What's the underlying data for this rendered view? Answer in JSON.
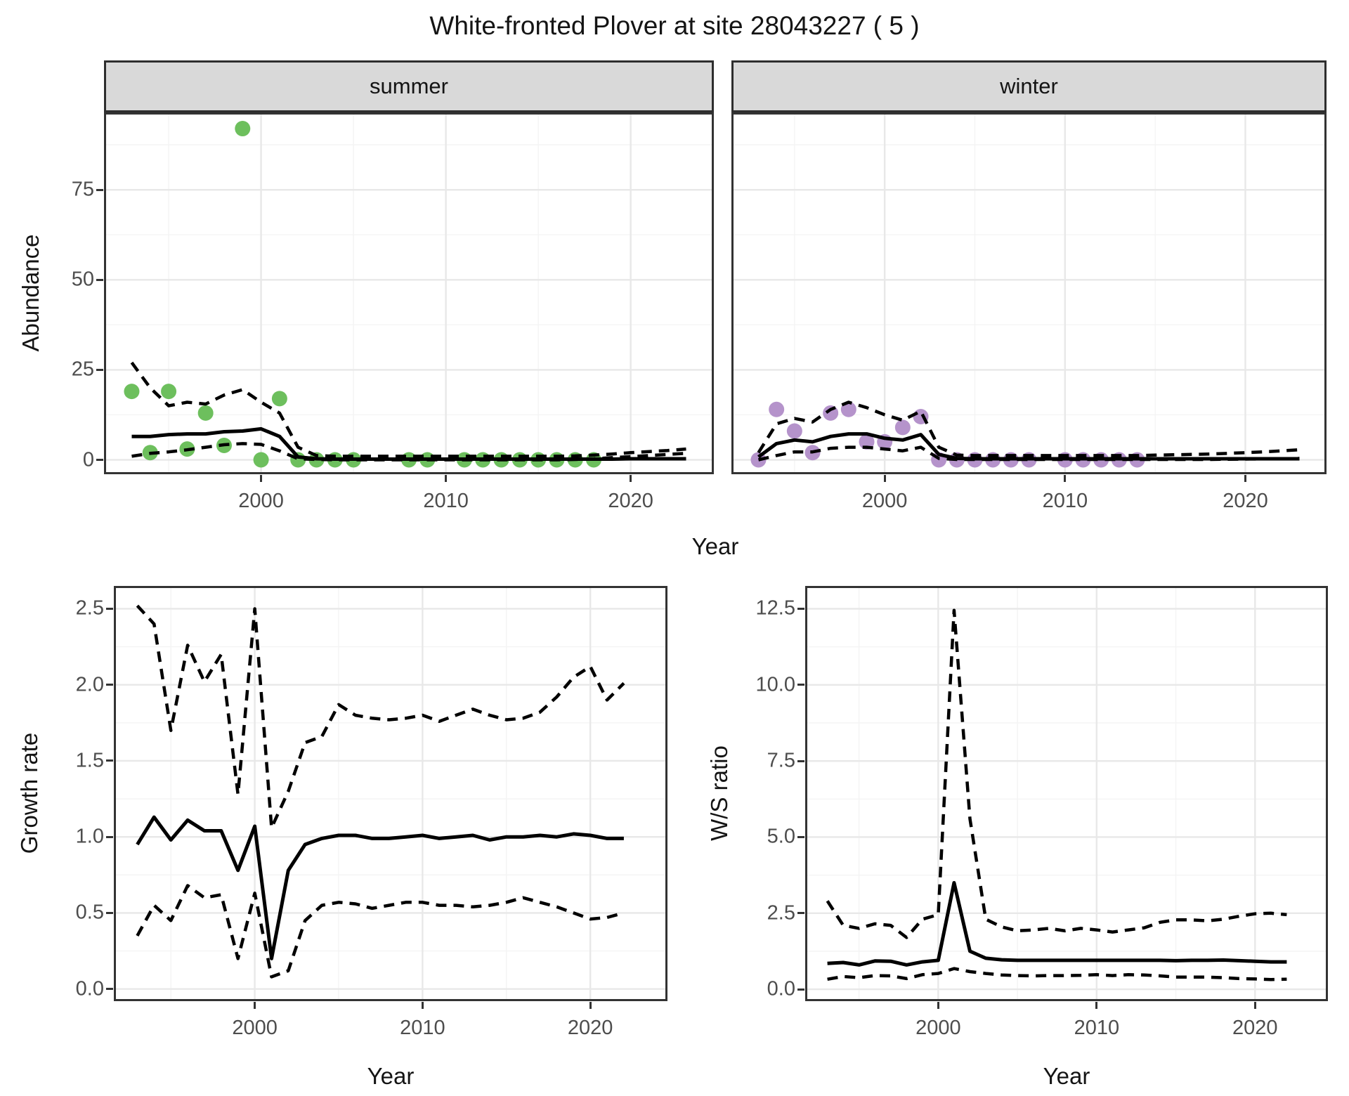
{
  "title": "White-fronted Plover at site 28043227 ( 5 )",
  "facets": {
    "summer_label": "summer",
    "winter_label": "winter"
  },
  "axis_titles": {
    "abundance": "Abundance",
    "year_top": "Year",
    "growth": "Growth rate",
    "ws": "W/S ratio",
    "year_growth": "Year",
    "year_ws": "Year"
  },
  "colors": {
    "summer_point": "#6dbf5d",
    "winter_point": "#b593cb",
    "line": "#000000",
    "strip_bg": "#d9d9d9",
    "panel_border": "#333333",
    "grid_major": "#e8e8e8",
    "grid_minor": "#f4f4f4",
    "tick_text": "#4d4d4d"
  },
  "chart_data": [
    {
      "panel_id": "panel-summer",
      "type": "line",
      "facet": "summer",
      "xlabel": "Year",
      "ylabel": "Abundance",
      "axes": {
        "xlim": [
          1991.5,
          2024.5
        ],
        "ylim": [
          -4.0,
          96.5
        ],
        "x_ticks": [
          {
            "v": 2000,
            "label": "2000"
          },
          {
            "v": 2010,
            "label": "2010"
          },
          {
            "v": 2020,
            "label": "2020"
          }
        ],
        "y_ticks": [
          {
            "v": 0,
            "label": "0"
          },
          {
            "v": 25,
            "label": "25"
          },
          {
            "v": 50,
            "label": "50"
          },
          {
            "v": 75,
            "label": "75"
          }
        ],
        "x_minor": [
          1995,
          2005,
          2015
        ],
        "y_minor": [
          12.5,
          37.5,
          62.5,
          87.5
        ],
        "show_y_labels": true
      },
      "years": [
        1993,
        1994,
        1995,
        1996,
        1997,
        1998,
        1999,
        2000,
        2001,
        2002,
        2003,
        2004,
        2005,
        2006,
        2007,
        2008,
        2009,
        2010,
        2011,
        2012,
        2013,
        2014,
        2015,
        2016,
        2017,
        2018,
        2019,
        2020,
        2021,
        2022,
        2023
      ],
      "series": [
        {
          "name": "lower-ci",
          "style": "dashed",
          "values": [
            1,
            1.8,
            2.2,
            2.8,
            3.5,
            4.2,
            4.5,
            4.3,
            2.5,
            0.3,
            0.1,
            0,
            0,
            0,
            0,
            0,
            0,
            0,
            0,
            0,
            0,
            0,
            0,
            0,
            0.1,
            0.3,
            0.6,
            0.9,
            1.2,
            1.5,
            1.8
          ]
        },
        {
          "name": "upper-ci",
          "style": "dashed",
          "values": [
            27,
            20,
            15,
            16,
            15.5,
            18,
            19.5,
            16,
            13,
            3.5,
            1.2,
            1,
            1,
            1,
            1,
            1,
            1,
            1,
            1,
            1,
            1,
            1,
            1,
            1,
            1.1,
            1.3,
            1.6,
            2,
            2.3,
            2.6,
            3
          ]
        },
        {
          "name": "median",
          "style": "solid",
          "values": [
            6.5,
            6.5,
            7,
            7.2,
            7.2,
            7.8,
            8,
            8.6,
            6.5,
            0.8,
            0.3,
            0.2,
            0.2,
            0.2,
            0.2,
            0.2,
            0.2,
            0.2,
            0.2,
            0.2,
            0.2,
            0.2,
            0.2,
            0.2,
            0.2,
            0.2,
            0.2,
            0.3,
            0.3,
            0.3,
            0.3
          ]
        }
      ],
      "points": {
        "color_key": "summer_point",
        "color": "#6dbf5d",
        "data": [
          [
            1993,
            19
          ],
          [
            1994,
            2
          ],
          [
            1995,
            19
          ],
          [
            1996,
            3
          ],
          [
            1997,
            13
          ],
          [
            1998,
            4
          ],
          [
            1999,
            92
          ],
          [
            2000,
            0
          ],
          [
            2001,
            17
          ],
          [
            2002,
            0
          ],
          [
            2003,
            0
          ],
          [
            2004,
            0
          ],
          [
            2005,
            0
          ],
          [
            2008,
            0
          ],
          [
            2009,
            0
          ],
          [
            2011,
            0
          ],
          [
            2012,
            0
          ],
          [
            2013,
            0
          ],
          [
            2014,
            0
          ],
          [
            2015,
            0
          ],
          [
            2016,
            0
          ],
          [
            2017,
            0
          ],
          [
            2018,
            0
          ]
        ]
      }
    },
    {
      "panel_id": "panel-winter",
      "type": "line",
      "facet": "winter",
      "xlabel": "Year",
      "ylabel": "Abundance",
      "axes": {
        "xlim": [
          1991.5,
          2024.5
        ],
        "ylim": [
          -4.0,
          96.5
        ],
        "x_ticks": [
          {
            "v": 2000,
            "label": "2000"
          },
          {
            "v": 2010,
            "label": "2010"
          },
          {
            "v": 2020,
            "label": "2020"
          }
        ],
        "y_ticks": [
          {
            "v": 0,
            "label": "0"
          },
          {
            "v": 25,
            "label": "25"
          },
          {
            "v": 50,
            "label": "50"
          },
          {
            "v": 75,
            "label": "75"
          }
        ],
        "x_minor": [
          1995,
          2005,
          2015
        ],
        "y_minor": [
          12.5,
          37.5,
          62.5,
          87.5
        ],
        "show_y_labels": false
      },
      "years": [
        1993,
        1994,
        1995,
        1996,
        1997,
        1998,
        1999,
        2000,
        2001,
        2002,
        2003,
        2004,
        2005,
        2006,
        2007,
        2008,
        2009,
        2010,
        2011,
        2012,
        2013,
        2014,
        2015,
        2016,
        2017,
        2018,
        2019,
        2020,
        2021,
        2022,
        2023
      ],
      "series": [
        {
          "name": "lower-ci",
          "style": "dashed",
          "values": [
            0,
            1.2,
            2.2,
            2.2,
            3.2,
            3.5,
            3.5,
            3,
            2.5,
            3.5,
            0.4,
            0.1,
            0.1,
            0.1,
            0.1,
            0.1,
            0.1,
            0.1,
            0.1,
            0.1,
            0.1,
            0.1,
            0.1,
            0.1,
            0.1,
            0.1,
            0.15,
            0.2,
            0.25,
            0.3,
            0.4
          ]
        },
        {
          "name": "upper-ci",
          "style": "dashed",
          "values": [
            2,
            10,
            11.5,
            10.5,
            14,
            16,
            14.5,
            12.5,
            11,
            13.5,
            3.5,
            1.3,
            1.2,
            1.2,
            1.2,
            1.2,
            1.2,
            1.2,
            1.2,
            1.2,
            1.2,
            1.2,
            1.3,
            1.4,
            1.5,
            1.6,
            1.8,
            2,
            2.2,
            2.5,
            2.8
          ]
        },
        {
          "name": "median",
          "style": "solid",
          "values": [
            0.8,
            4.5,
            5.5,
            5,
            6.5,
            7.2,
            7.2,
            6,
            5.5,
            7,
            1.5,
            0.4,
            0.3,
            0.3,
            0.3,
            0.3,
            0.3,
            0.3,
            0.3,
            0.3,
            0.3,
            0.3,
            0.3,
            0.3,
            0.3,
            0.3,
            0.3,
            0.3,
            0.3,
            0.3,
            0.3
          ]
        }
      ],
      "points": {
        "color_key": "winter_point",
        "color": "#b593cb",
        "data": [
          [
            1993,
            0
          ],
          [
            1994,
            14
          ],
          [
            1995,
            8
          ],
          [
            1996,
            2
          ],
          [
            1997,
            13
          ],
          [
            1998,
            14
          ],
          [
            1999,
            5
          ],
          [
            2000,
            5
          ],
          [
            2001,
            9
          ],
          [
            2002,
            12
          ],
          [
            2003,
            0
          ],
          [
            2004,
            0
          ],
          [
            2005,
            0
          ],
          [
            2006,
            0
          ],
          [
            2007,
            0
          ],
          [
            2008,
            0
          ],
          [
            2010,
            0
          ],
          [
            2011,
            0
          ],
          [
            2012,
            0
          ],
          [
            2013,
            0
          ],
          [
            2014,
            0
          ]
        ]
      }
    },
    {
      "panel_id": "panel-growth",
      "type": "line",
      "xlabel": "Year",
      "ylabel": "Growth rate",
      "axes": {
        "xlim": [
          1991.6,
          2024.6
        ],
        "ylim": [
          -0.08,
          2.65
        ],
        "x_ticks": [
          {
            "v": 2000,
            "label": "2000"
          },
          {
            "v": 2010,
            "label": "2010"
          },
          {
            "v": 2020,
            "label": "2020"
          }
        ],
        "y_ticks": [
          {
            "v": 0,
            "label": "0.0"
          },
          {
            "v": 0.5,
            "label": "0.5"
          },
          {
            "v": 1,
            "label": "1.0"
          },
          {
            "v": 1.5,
            "label": "1.5"
          },
          {
            "v": 2,
            "label": "2.0"
          },
          {
            "v": 2.5,
            "label": "2.5"
          }
        ],
        "x_minor": [
          1995,
          2005,
          2015
        ],
        "y_minor": [
          0.25,
          0.75,
          1.25,
          1.75,
          2.25
        ],
        "show_y_labels": true
      },
      "years": [
        1993,
        1994,
        1995,
        1996,
        1997,
        1998,
        1999,
        2000,
        2001,
        2002,
        2003,
        2004,
        2005,
        2006,
        2007,
        2008,
        2009,
        2010,
        2011,
        2012,
        2013,
        2014,
        2015,
        2016,
        2017,
        2018,
        2019,
        2020,
        2021,
        2022
      ],
      "series": [
        {
          "name": "lower-ci",
          "style": "dashed",
          "values": [
            0.35,
            0.55,
            0.45,
            0.68,
            0.6,
            0.62,
            0.2,
            0.63,
            0.08,
            0.12,
            0.45,
            0.55,
            0.57,
            0.56,
            0.53,
            0.55,
            0.57,
            0.57,
            0.55,
            0.55,
            0.54,
            0.55,
            0.57,
            0.6,
            0.57,
            0.54,
            0.5,
            0.46,
            0.47,
            0.5
          ]
        },
        {
          "name": "upper-ci",
          "style": "dashed",
          "values": [
            2.52,
            2.4,
            1.7,
            2.26,
            2.02,
            2.2,
            1.28,
            2.5,
            1.06,
            1.3,
            1.62,
            1.66,
            1.87,
            1.8,
            1.78,
            1.77,
            1.78,
            1.8,
            1.76,
            1.8,
            1.84,
            1.8,
            1.77,
            1.78,
            1.82,
            1.92,
            2.05,
            2.12,
            1.9,
            2.01
          ]
        },
        {
          "name": "median",
          "style": "solid",
          "values": [
            0.95,
            1.13,
            0.98,
            1.11,
            1.04,
            1.04,
            0.78,
            1.07,
            0.2,
            0.78,
            0.95,
            0.99,
            1.01,
            1.01,
            0.99,
            0.99,
            1,
            1.01,
            0.99,
            1,
            1.01,
            0.98,
            1,
            1,
            1.01,
            1,
            1.02,
            1.01,
            0.99,
            0.99
          ]
        }
      ]
    },
    {
      "panel_id": "panel-ws",
      "type": "line",
      "xlabel": "Year",
      "ylabel": "W/S ratio",
      "axes": {
        "xlim": [
          1991.6,
          2024.6
        ],
        "ylim": [
          -0.39,
          13.25
        ],
        "x_ticks": [
          {
            "v": 2000,
            "label": "2000"
          },
          {
            "v": 2010,
            "label": "2010"
          },
          {
            "v": 2020,
            "label": "2020"
          }
        ],
        "y_ticks": [
          {
            "v": 0,
            "label": "0.0"
          },
          {
            "v": 2.5,
            "label": "2.5"
          },
          {
            "v": 5,
            "label": "5.0"
          },
          {
            "v": 7.5,
            "label": "7.5"
          },
          {
            "v": 10,
            "label": "10.0"
          },
          {
            "v": 12.5,
            "label": "12.5"
          }
        ],
        "x_minor": [
          1995,
          2005,
          2015
        ],
        "y_minor": [
          1.25,
          3.75,
          6.25,
          8.75,
          11.25
        ],
        "show_y_labels": true
      },
      "years": [
        1993,
        1994,
        1995,
        1996,
        1997,
        1998,
        1999,
        2000,
        2001,
        2002,
        2003,
        2004,
        2005,
        2006,
        2007,
        2008,
        2009,
        2010,
        2011,
        2012,
        2013,
        2014,
        2015,
        2016,
        2017,
        2018,
        2019,
        2020,
        2021,
        2022
      ],
      "series": [
        {
          "name": "lower-ci",
          "style": "dashed",
          "values": [
            0.33,
            0.42,
            0.38,
            0.45,
            0.44,
            0.35,
            0.48,
            0.52,
            0.68,
            0.58,
            0.52,
            0.47,
            0.45,
            0.44,
            0.45,
            0.45,
            0.46,
            0.48,
            0.45,
            0.48,
            0.47,
            0.44,
            0.4,
            0.4,
            0.4,
            0.38,
            0.35,
            0.34,
            0.32,
            0.33
          ]
        },
        {
          "name": "upper-ci",
          "style": "dashed",
          "values": [
            2.9,
            2.1,
            2,
            2.15,
            2.1,
            1.7,
            2.3,
            2.45,
            12.45,
            5.6,
            2.3,
            2.05,
            1.92,
            1.95,
            2,
            1.92,
            2,
            1.95,
            1.88,
            1.95,
            2.02,
            2.2,
            2.28,
            2.28,
            2.25,
            2.3,
            2.4,
            2.48,
            2.5,
            2.45
          ]
        },
        {
          "name": "median",
          "style": "solid",
          "values": [
            0.85,
            0.88,
            0.8,
            0.93,
            0.92,
            0.8,
            0.9,
            0.95,
            3.5,
            1.25,
            1.02,
            0.97,
            0.95,
            0.95,
            0.95,
            0.95,
            0.95,
            0.95,
            0.95,
            0.95,
            0.95,
            0.95,
            0.94,
            0.95,
            0.95,
            0.96,
            0.94,
            0.92,
            0.9,
            0.9
          ]
        }
      ]
    }
  ]
}
